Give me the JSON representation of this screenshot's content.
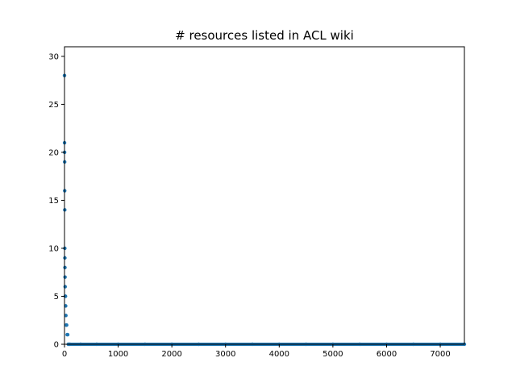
{
  "chart_data": {
    "type": "scatter",
    "title": "# resources listed in ACL wiki",
    "xlabel": "",
    "ylabel": "",
    "xlim": [
      0,
      7450
    ],
    "ylim": [
      0,
      31
    ],
    "xticks": [
      0,
      1000,
      2000,
      3000,
      4000,
      5000,
      6000,
      7000
    ],
    "yticks": [
      0,
      5,
      10,
      15,
      20,
      25,
      30
    ],
    "grid": false,
    "marker_color": "#1f77b4",
    "series": [
      {
        "x": [
          0,
          1,
          2,
          3,
          4,
          5,
          6,
          7,
          8,
          10,
          12,
          15,
          18,
          22,
          26,
          32,
          40,
          50,
          60,
          70,
          100,
          300,
          600,
          1000,
          1500,
          2000,
          2500,
          3000,
          3500,
          4000,
          4500,
          5000,
          5500,
          6000,
          6500,
          7000,
          7450
        ],
        "y": [
          28,
          21,
          20,
          19,
          16,
          14,
          10,
          9,
          8,
          7,
          6,
          5,
          5,
          4,
          3,
          2,
          2,
          1,
          1,
          0,
          0,
          0,
          0,
          0,
          0,
          0,
          0,
          0,
          0,
          0,
          0,
          0,
          0,
          0,
          0,
          0,
          0
        ]
      }
    ]
  }
}
